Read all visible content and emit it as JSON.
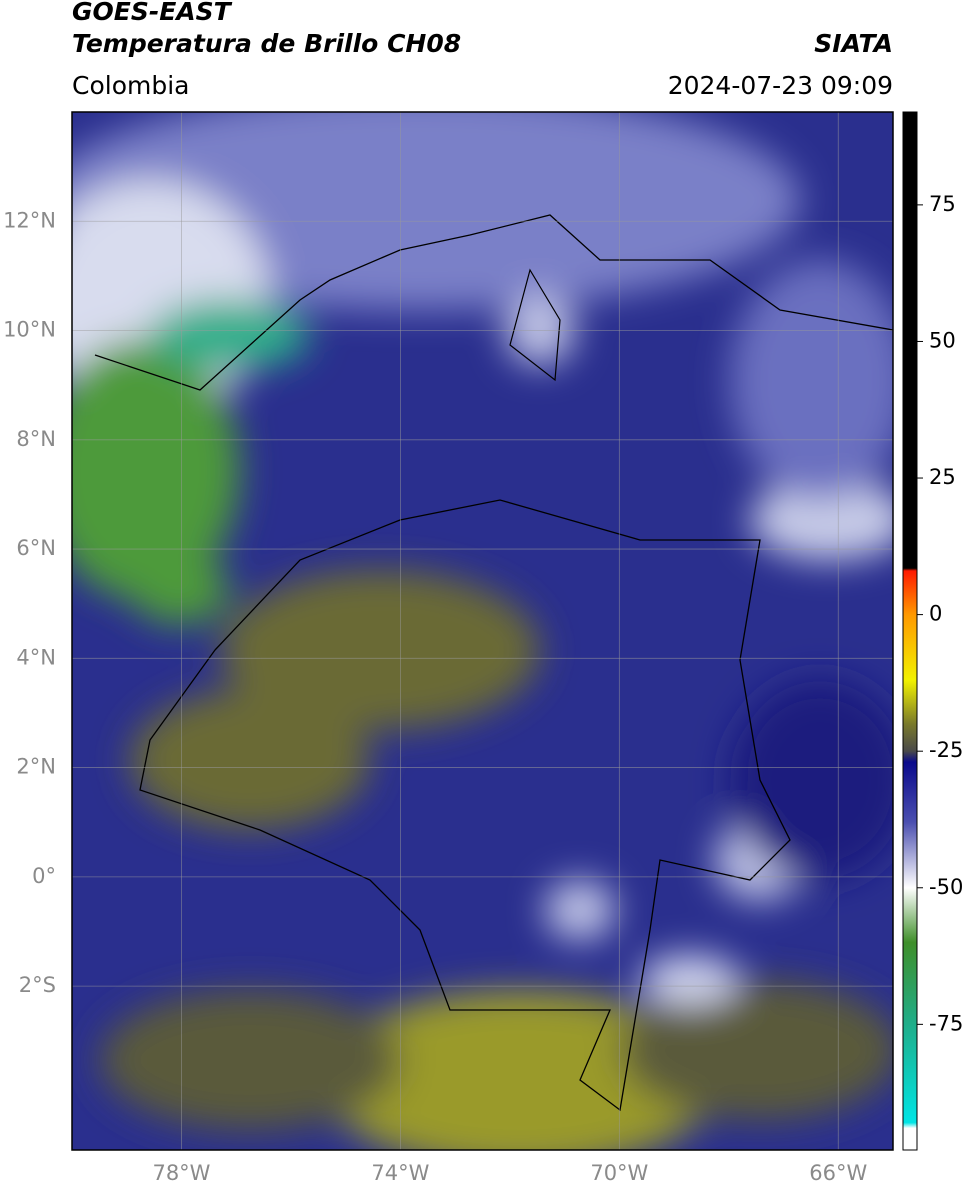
{
  "header": {
    "satellite": "GOES-EAST",
    "product": "Temperatura de Brillo CH08",
    "source": "SIATA",
    "region": "Colombia",
    "datetime": "2024-07-23 09:09"
  },
  "map": {
    "lonlim": [
      -80,
      -65
    ],
    "latlim": [
      -5,
      14
    ],
    "lonticks": [
      {
        "value": -78,
        "label": "78°W"
      },
      {
        "value": -74,
        "label": "74°W"
      },
      {
        "value": -70,
        "label": "70°W"
      },
      {
        "value": -66,
        "label": "66°W"
      }
    ],
    "latticks": [
      {
        "value": 12,
        "label": "12°N"
      },
      {
        "value": 10,
        "label": "10°N"
      },
      {
        "value": 8,
        "label": "8°N"
      },
      {
        "value": 6,
        "label": "6°N"
      },
      {
        "value": 4,
        "label": "4°N"
      },
      {
        "value": 2,
        "label": "2°N"
      },
      {
        "value": 0,
        "label": "0°"
      },
      {
        "value": -2,
        "label": "2°S"
      }
    ],
    "grid": true
  },
  "colorbar": {
    "lim": [
      -98,
      92
    ],
    "ticks": [
      75,
      50,
      25,
      0,
      -25,
      -50,
      -75
    ],
    "stops": [
      {
        "value": 92,
        "color": "#000000"
      },
      {
        "value": 8.5,
        "color": "#000000"
      },
      {
        "value": 8,
        "color": "#ff1a00"
      },
      {
        "value": 0,
        "color": "#ff9900"
      },
      {
        "value": -12,
        "color": "#f2f200"
      },
      {
        "value": -20,
        "color": "#7a7a2a"
      },
      {
        "value": -25,
        "color": "#4a4a4a"
      },
      {
        "value": -27,
        "color": "#0a0a8c"
      },
      {
        "value": -38,
        "color": "#4b4fb0"
      },
      {
        "value": -50,
        "color": "#ffffff"
      },
      {
        "value": -60,
        "color": "#3f8f2a"
      },
      {
        "value": -75,
        "color": "#1fae8a"
      },
      {
        "value": -93,
        "color": "#00e5e5"
      },
      {
        "value": -94,
        "color": "#ffffff"
      },
      {
        "value": -98,
        "color": "#ffffff"
      }
    ]
  }
}
